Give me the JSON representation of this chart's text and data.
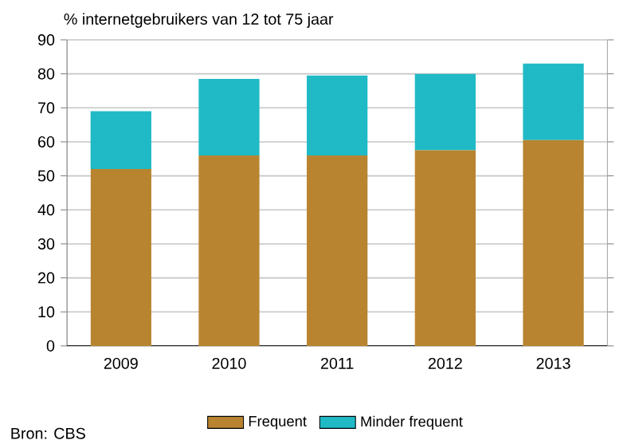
{
  "chart_data": {
    "type": "bar",
    "stacked": true,
    "ylabel": "% internetgebruikers van 12 tot 75 jaar",
    "categories": [
      "2009",
      "2010",
      "2011",
      "2012",
      "2013"
    ],
    "series": [
      {
        "name": "Frequent",
        "color": "#b8842f",
        "values": [
          52,
          56,
          56,
          57.5,
          60.5
        ]
      },
      {
        "name": "Minder frequent",
        "color": "#1fbac6",
        "values": [
          17,
          22.5,
          23.5,
          22.5,
          22.5
        ]
      }
    ],
    "ylim": [
      0,
      90
    ],
    "yticks": [
      0,
      10,
      20,
      30,
      40,
      50,
      60,
      70,
      80,
      90
    ],
    "grid": "y",
    "legend": "bottom",
    "annotations": [
      "Bron: CBS"
    ]
  }
}
